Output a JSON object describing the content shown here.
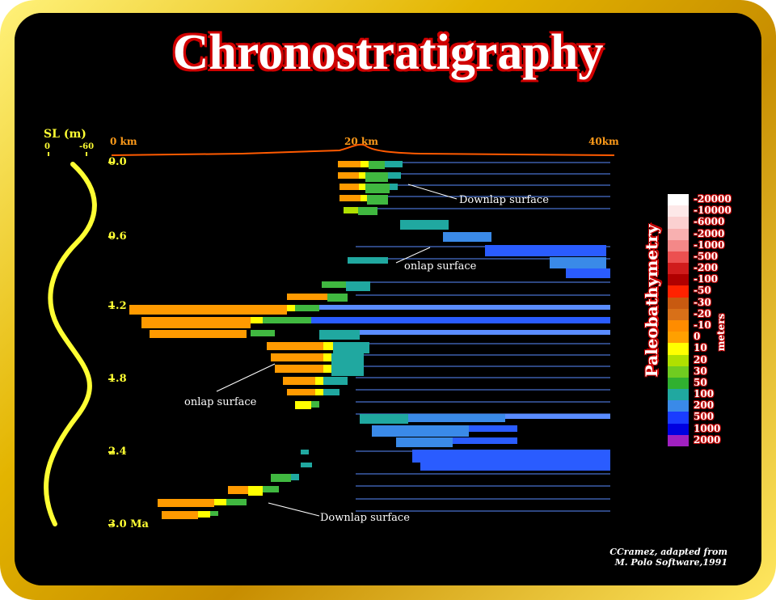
{
  "title": "Chronostratigraphy",
  "sea_level": {
    "label": "SL (m)",
    "tick_left": "0",
    "tick_right": "-60"
  },
  "distance_labels": [
    "0 km",
    "20 km",
    "40km"
  ],
  "age_labels": [
    "0.0",
    "0.6",
    "1.2",
    "1.8",
    "2.4",
    "3.0 Ma"
  ],
  "annotations": {
    "downlap_top": "Downlap surface",
    "onlap_upper": "onlap surface",
    "onlap_lower": "onlap surface",
    "downlap_bottom": "Downlap surface"
  },
  "legend": {
    "title": "Paleobathymetry",
    "units": "meters",
    "entries": [
      {
        "label": "-20000",
        "color": "#ffffff"
      },
      {
        "label": "-10000",
        "color": "#fde8e8"
      },
      {
        "label": "-6000",
        "color": "#fbd0d0"
      },
      {
        "label": "-2000",
        "color": "#f8b0b0"
      },
      {
        "label": "-1000",
        "color": "#f48888"
      },
      {
        "label": "-500",
        "color": "#ec5050"
      },
      {
        "label": "-200",
        "color": "#d01c1c"
      },
      {
        "label": "-100",
        "color": "#b00000"
      },
      {
        "label": "-50",
        "color": "#ff2200"
      },
      {
        "label": "-30",
        "color": "#c85a10"
      },
      {
        "label": "-20",
        "color": "#d87018"
      },
      {
        "label": "-10",
        "color": "#ff8c00"
      },
      {
        "label": "0",
        "color": "#ffa000"
      },
      {
        "label": "10",
        "color": "#ffff00"
      },
      {
        "label": "20",
        "color": "#b0e000"
      },
      {
        "label": "30",
        "color": "#70cc20"
      },
      {
        "label": "50",
        "color": "#30b030"
      },
      {
        "label": "100",
        "color": "#20a8a0"
      },
      {
        "label": "200",
        "color": "#3a8ae8"
      },
      {
        "label": "500",
        "color": "#1a3cff"
      },
      {
        "label": "1000",
        "color": "#0000e0"
      },
      {
        "label": "2000",
        "color": "#a020c0"
      }
    ]
  },
  "credit_line1": "CCramez, adapted  from",
  "credit_line2": "M. Polo Software,1991",
  "colors": {
    "frame": "#e3b400",
    "background": "#000000",
    "sea_level_curve": "#ffff33",
    "title_outline": "#d00000",
    "topography": "#ff5a00"
  }
}
